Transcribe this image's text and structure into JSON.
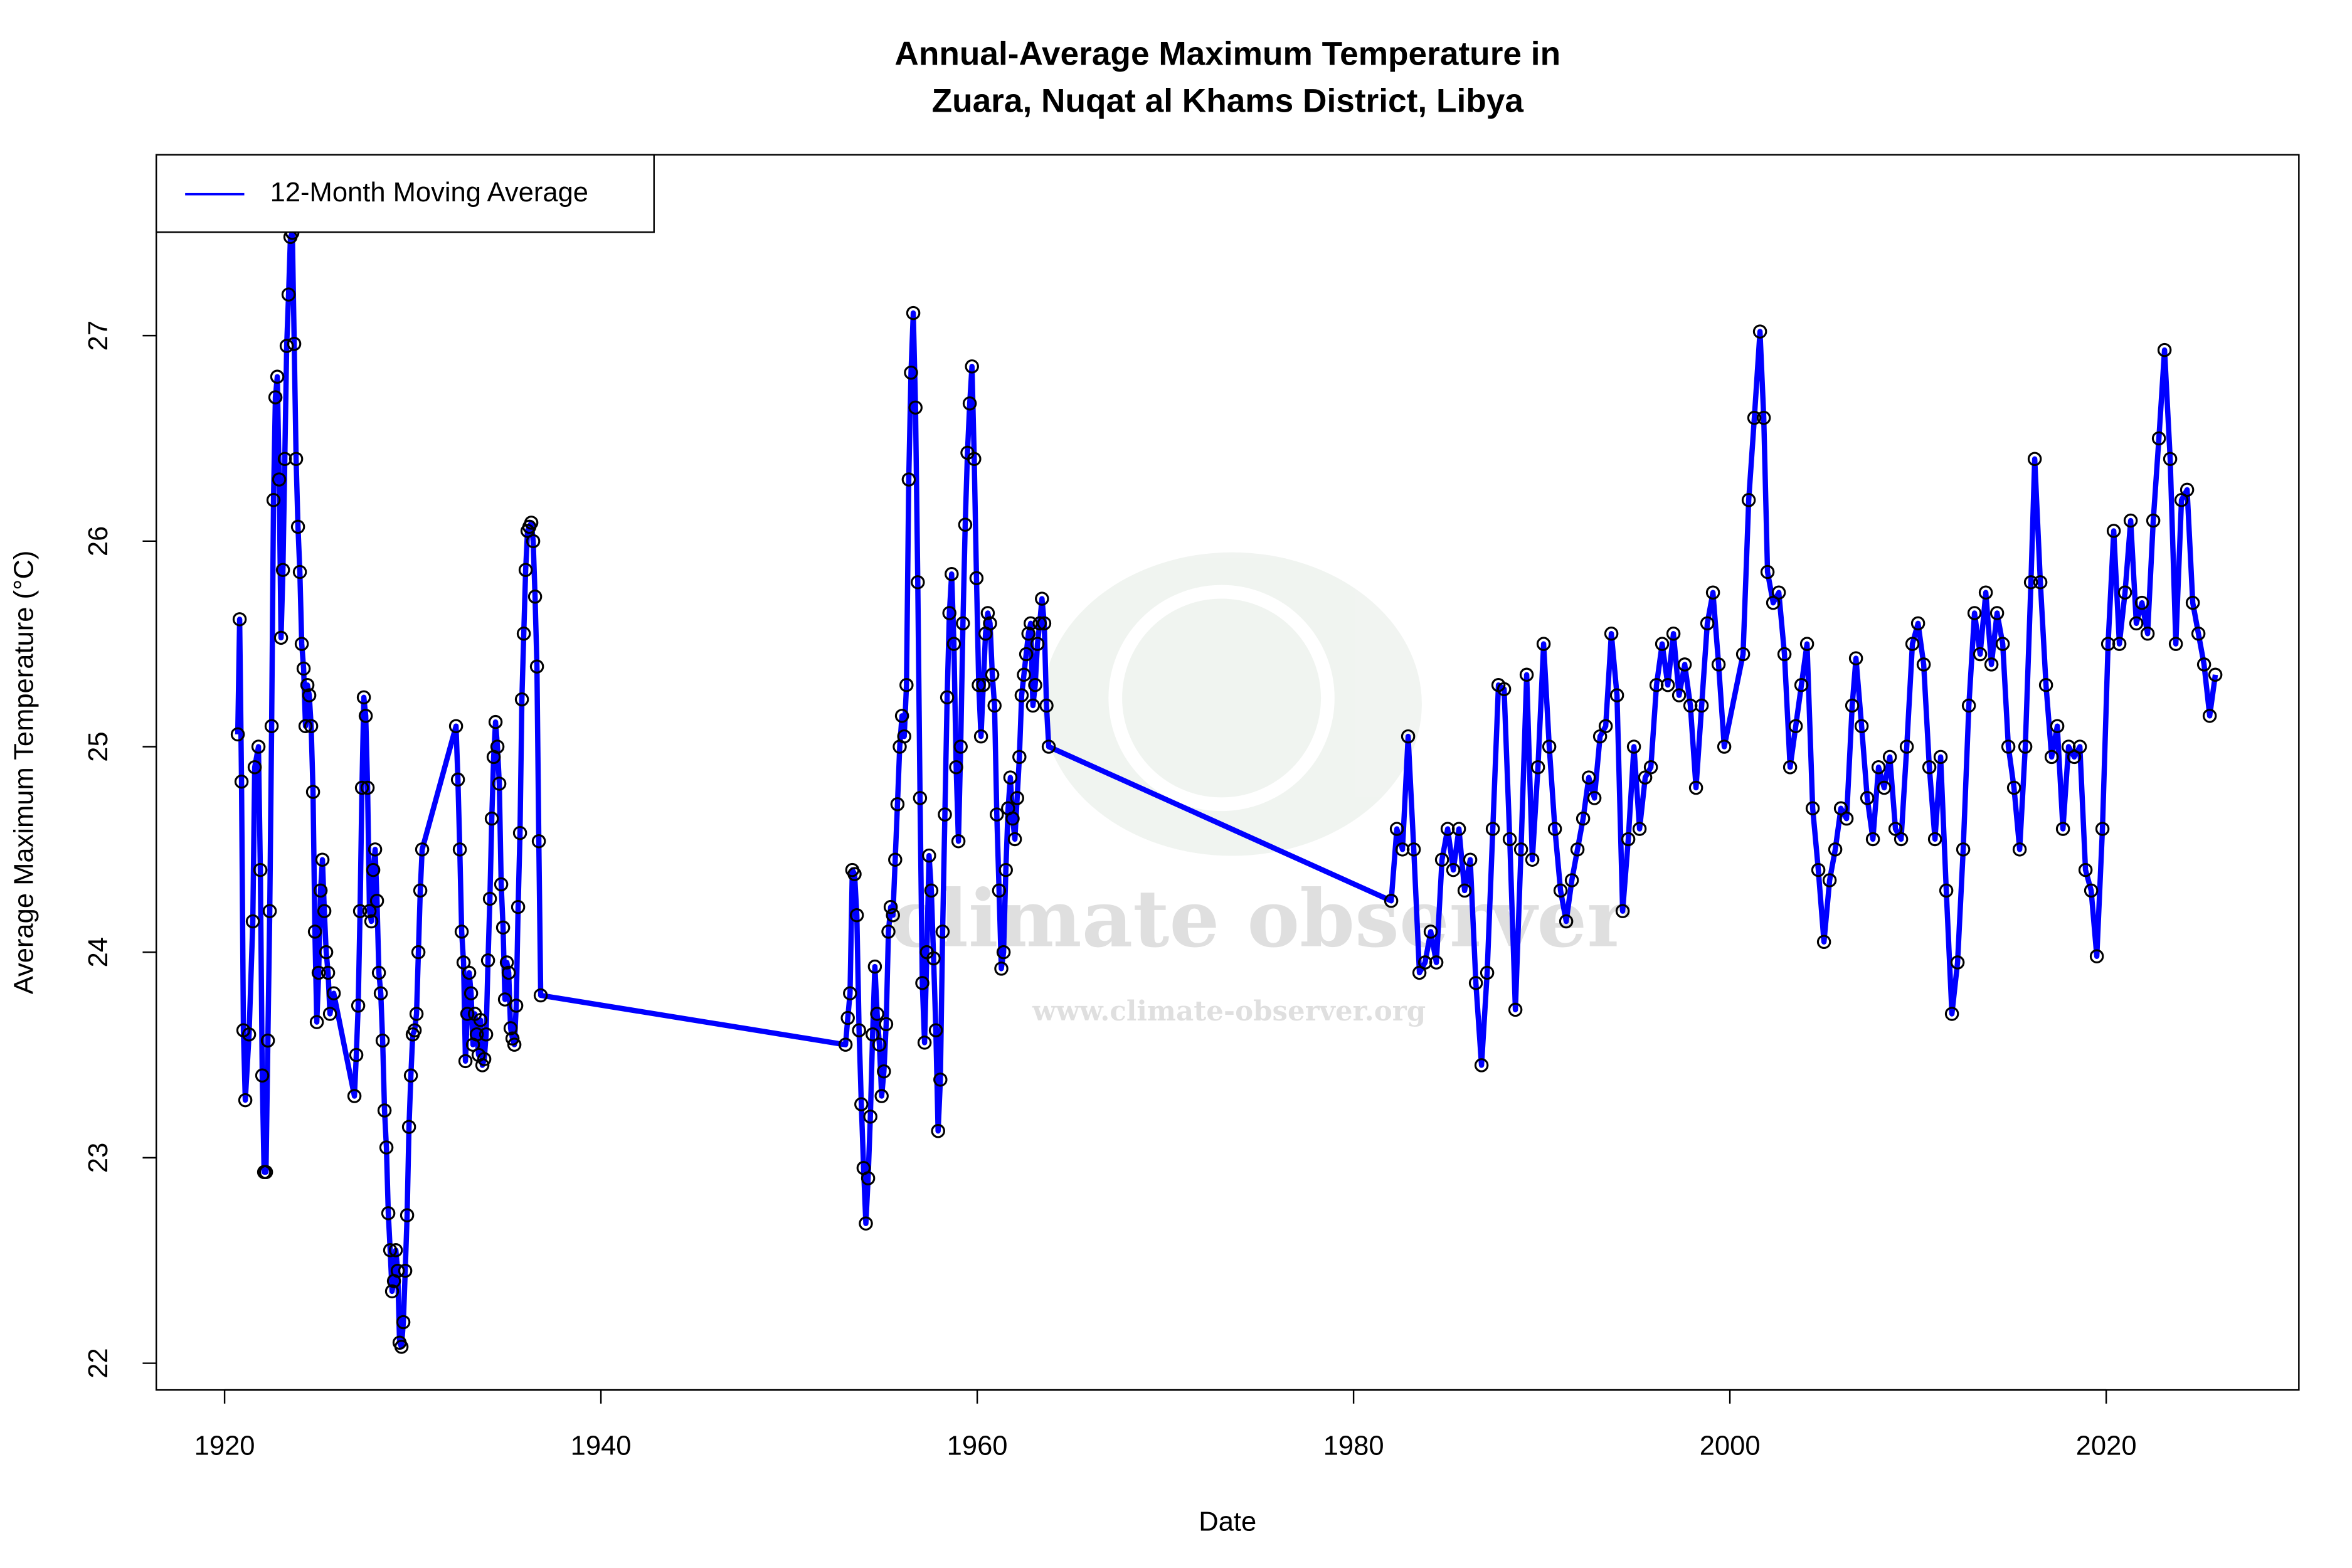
{
  "chart_data": {
    "type": "line",
    "title": [
      "Annual-Average Maximum Temperature in",
      "Zuara, Nuqat al Khams District, Libya"
    ],
    "xlabel": "Date",
    "ylabel": "Average Maximum Temperature (°C)",
    "watermark": [
      "climate observer",
      "www.climate-observer.org"
    ],
    "xlim": [
      1916.37,
      2030.24
    ],
    "ylim": [
      21.87,
      27.88
    ],
    "xticks": [
      1920,
      1940,
      1960,
      1980,
      2000,
      2020
    ],
    "yticks": [
      22,
      23,
      24,
      25,
      26,
      27
    ],
    "legend": "top-left",
    "points": true,
    "x": [
      1920.7,
      1920.8,
      1920.9,
      1921.0,
      1921.1,
      1921.3,
      1921.5,
      1921.6,
      1921.8,
      1921.9,
      1922.0,
      1922.1,
      1922.2,
      1922.3,
      1922.4,
      1922.5,
      1922.6,
      1922.7,
      1922.8,
      1922.9,
      1923.0,
      1923.1,
      1923.2,
      1923.3,
      1923.4,
      1923.5,
      1923.6,
      1923.7,
      1923.8,
      1923.9,
      1924.0,
      1924.1,
      1924.2,
      1924.3,
      1924.4,
      1924.5,
      1924.6,
      1924.7,
      1924.8,
      1924.9,
      1925.0,
      1925.1,
      1925.2,
      1925.3,
      1925.4,
      1925.5,
      1925.6,
      1925.8,
      1926.9,
      1927.0,
      1927.1,
      1927.2,
      1927.3,
      1927.4,
      1927.5,
      1927.6,
      1927.7,
      1927.8,
      1927.9,
      1928.0,
      1928.1,
      1928.2,
      1928.3,
      1928.4,
      1928.5,
      1928.6,
      1928.7,
      1928.8,
      1928.9,
      1929.0,
      1929.1,
      1929.2,
      1929.3,
      1929.4,
      1929.5,
      1929.6,
      1929.7,
      1929.8,
      1929.9,
      1930.0,
      1930.1,
      1930.2,
      1930.3,
      1930.4,
      1930.5,
      1932.3,
      1932.4,
      1932.5,
      1932.6,
      1932.7,
      1932.8,
      1932.9,
      1933.0,
      1933.1,
      1933.2,
      1933.3,
      1933.4,
      1933.5,
      1933.6,
      1933.7,
      1933.8,
      1933.9,
      1934.0,
      1934.1,
      1934.2,
      1934.3,
      1934.4,
      1934.5,
      1934.6,
      1934.7,
      1934.8,
      1934.9,
      1935.0,
      1935.1,
      1935.2,
      1935.3,
      1935.4,
      1935.5,
      1935.6,
      1935.7,
      1935.8,
      1935.9,
      1936.0,
      1936.1,
      1936.2,
      1936.3,
      1936.4,
      1936.5,
      1936.6,
      1936.7,
      1936.8,
      1953.0,
      1953.12,
      1953.24,
      1953.36,
      1953.48,
      1953.6,
      1953.72,
      1953.84,
      1953.96,
      1954.08,
      1954.2,
      1954.32,
      1954.44,
      1954.56,
      1954.68,
      1954.8,
      1954.92,
      1955.04,
      1955.16,
      1955.28,
      1955.4,
      1955.52,
      1955.64,
      1955.76,
      1955.88,
      1956.0,
      1956.12,
      1956.24,
      1956.36,
      1956.48,
      1956.6,
      1956.72,
      1956.84,
      1956.96,
      1957.08,
      1957.2,
      1957.32,
      1957.44,
      1957.56,
      1957.68,
      1957.8,
      1957.92,
      1958.04,
      1958.16,
      1958.28,
      1958.4,
      1958.52,
      1958.64,
      1958.76,
      1958.88,
      1959.0,
      1959.12,
      1959.24,
      1959.36,
      1959.48,
      1959.6,
      1959.72,
      1959.84,
      1959.96,
      1960.08,
      1960.2,
      1960.32,
      1960.44,
      1960.56,
      1960.68,
      1960.8,
      1960.92,
      1961.04,
      1961.16,
      1961.28,
      1961.4,
      1961.52,
      1961.64,
      1961.76,
      1961.88,
      1962.0,
      1962.12,
      1962.24,
      1962.36,
      1962.48,
      1962.6,
      1962.72,
      1962.84,
      1962.96,
      1963.08,
      1963.2,
      1963.32,
      1963.44,
      1963.56,
      1963.68,
      1963.8,
      1982.0,
      1982.3,
      1982.6,
      1982.9,
      1983.2,
      1983.5,
      1983.8,
      1984.1,
      1984.4,
      1984.7,
      1985.0,
      1985.3,
      1985.6,
      1985.9,
      1986.2,
      1986.5,
      1986.8,
      1987.1,
      1987.4,
      1987.7,
      1988.0,
      1988.3,
      1988.6,
      1988.9,
      1989.2,
      1989.5,
      1989.8,
      1990.1,
      1990.4,
      1990.7,
      1991.0,
      1991.3,
      1991.6,
      1991.9,
      1992.2,
      1992.5,
      1992.8,
      1993.1,
      1993.4,
      1993.7,
      1994.0,
      1994.3,
      1994.6,
      1994.9,
      1995.2,
      1995.5,
      1995.8,
      1996.1,
      1996.4,
      1996.7,
      1997.0,
      1997.3,
      1997.6,
      1997.9,
      1998.2,
      1998.5,
      1998.8,
      1999.1,
      1999.4,
      1999.7,
      2000.7,
      2001.0,
      2001.3,
      2001.6,
      2001.8,
      2002.0,
      2002.3,
      2002.6,
      2002.9,
      2003.2,
      2003.5,
      2003.8,
      2004.1,
      2004.4,
      2004.7,
      2005.0,
      2005.3,
      2005.6,
      2005.9,
      2006.2,
      2006.5,
      2006.7,
      2007.0,
      2007.3,
      2007.6,
      2007.9,
      2008.2,
      2008.5,
      2008.8,
      2009.1,
      2009.4,
      2009.7,
      2010.0,
      2010.3,
      2010.6,
      2010.9,
      2011.2,
      2011.5,
      2011.8,
      2012.1,
      2012.4,
      2012.7,
      2013.0,
      2013.3,
      2013.6,
      2013.9,
      2014.2,
      2014.5,
      2014.8,
      2015.1,
      2015.4,
      2015.7,
      2016.0,
      2016.2,
      2016.5,
      2016.8,
      2017.1,
      2017.4,
      2017.7,
      2018.0,
      2018.3,
      2018.6,
      2018.9,
      2019.2,
      2019.5,
      2019.8,
      2020.1,
      2020.4,
      2020.7,
      2021.0,
      2021.3,
      2021.6,
      2021.9,
      2022.2,
      2022.5,
      2022.8,
      2023.1,
      2023.4,
      2023.7,
      2024.0,
      2024.3,
      2024.6,
      2024.9,
      2025.2,
      2025.5,
      2025.8
    ],
    "series": [
      {
        "name": "12-Month Moving Average",
        "color": "#0000ff",
        "values": [
          25.06,
          25.62,
          24.83,
          23.62,
          23.28,
          23.6,
          24.15,
          24.9,
          25.0,
          24.4,
          23.4,
          22.93,
          22.93,
          23.57,
          24.2,
          25.1,
          26.2,
          26.7,
          26.8,
          26.3,
          25.53,
          25.86,
          26.4,
          26.95,
          27.2,
          27.48,
          27.5,
          26.96,
          26.4,
          26.07,
          25.85,
          25.5,
          25.38,
          25.1,
          25.3,
          25.25,
          25.1,
          24.78,
          24.1,
          23.66,
          23.9,
          24.3,
          24.45,
          24.2,
          24.0,
          23.9,
          23.7,
          23.8,
          23.3,
          23.5,
          23.74,
          24.2,
          24.8,
          25.24,
          25.15,
          24.8,
          24.2,
          24.15,
          24.4,
          24.5,
          24.25,
          23.9,
          23.8,
          23.57,
          23.23,
          23.05,
          22.73,
          22.55,
          22.35,
          22.4,
          22.55,
          22.45,
          22.1,
          22.08,
          22.2,
          22.45,
          22.72,
          23.15,
          23.4,
          23.6,
          23.62,
          23.7,
          24.0,
          24.3,
          24.5,
          25.1,
          24.84,
          24.5,
          24.1,
          23.95,
          23.47,
          23.7,
          23.9,
          23.8,
          23.55,
          23.7,
          23.6,
          23.5,
          23.67,
          23.45,
          23.48,
          23.6,
          23.96,
          24.26,
          24.65,
          24.95,
          25.12,
          25.0,
          24.82,
          24.33,
          24.12,
          23.77,
          23.95,
          23.9,
          23.63,
          23.58,
          23.55,
          23.74,
          24.22,
          24.58,
          25.23,
          25.55,
          25.86,
          26.05,
          26.07,
          26.09,
          26.0,
          25.73,
          25.39,
          24.54,
          23.79,
          23.55,
          23.68,
          23.8,
          24.4,
          24.38,
          24.18,
          23.62,
          23.26,
          22.95,
          22.68,
          22.9,
          23.2,
          23.6,
          23.93,
          23.7,
          23.55,
          23.3,
          23.42,
          23.65,
          24.1,
          24.22,
          24.18,
          24.45,
          24.72,
          25.0,
          25.15,
          25.05,
          25.3,
          26.3,
          26.82,
          27.11,
          26.65,
          25.8,
          24.75,
          23.85,
          23.56,
          24.0,
          24.47,
          24.3,
          23.97,
          23.62,
          23.13,
          23.38,
          24.1,
          24.67,
          25.24,
          25.65,
          25.84,
          25.5,
          24.9,
          24.54,
          25.0,
          25.6,
          26.08,
          26.43,
          26.67,
          26.85,
          26.4,
          25.82,
          25.3,
          25.05,
          25.3,
          25.55,
          25.65,
          25.6,
          25.35,
          25.2,
          24.67,
          24.3,
          23.92,
          24.0,
          24.4,
          24.7,
          24.85,
          24.65,
          24.55,
          24.75,
          24.95,
          25.25,
          25.35,
          25.45,
          25.55,
          25.6,
          25.2,
          25.3,
          25.5,
          25.6,
          25.72,
          25.6,
          25.2,
          25.0,
          24.25,
          24.6,
          24.5,
          25.05,
          24.5,
          23.9,
          23.95,
          24.1,
          23.95,
          24.45,
          24.6,
          24.4,
          24.6,
          24.3,
          24.45,
          23.85,
          23.45,
          23.9,
          24.6,
          25.3,
          25.28,
          24.55,
          23.72,
          24.5,
          25.35,
          24.45,
          24.9,
          25.5,
          25.0,
          24.6,
          24.3,
          24.15,
          24.35,
          24.5,
          24.65,
          24.85,
          24.75,
          25.05,
          25.1,
          25.55,
          25.25,
          24.2,
          24.55,
          25.0,
          24.6,
          24.85,
          24.9,
          25.3,
          25.5,
          25.3,
          25.55,
          25.25,
          25.4,
          25.2,
          24.8,
          25.2,
          25.6,
          25.75,
          25.4,
          25.0,
          25.45,
          26.2,
          26.6,
          27.02,
          26.6,
          25.85,
          25.7,
          25.75,
          25.45,
          24.9,
          25.1,
          25.3,
          25.5,
          24.7,
          24.4,
          24.05,
          24.35,
          24.5,
          24.7,
          24.65,
          25.2,
          25.43,
          25.1,
          24.75,
          24.55,
          24.9,
          24.8,
          24.95,
          24.6,
          24.55,
          25.0,
          25.5,
          25.6,
          25.4,
          24.9,
          24.55,
          24.95,
          24.3,
          23.7,
          23.95,
          24.5,
          25.2,
          25.65,
          25.45,
          25.75,
          25.4,
          25.65,
          25.5,
          25.0,
          24.8,
          24.5,
          25.0,
          25.8,
          26.4,
          25.8,
          25.3,
          24.95,
          25.1,
          24.6,
          25.0,
          24.95,
          25.0,
          24.4,
          24.3,
          23.98,
          24.6,
          25.5,
          26.05,
          25.5,
          25.75,
          26.1,
          25.6,
          25.7,
          25.55,
          26.1,
          26.5,
          26.93,
          26.4,
          25.5,
          26.2,
          26.25,
          25.7,
          25.55,
          25.4,
          25.15,
          25.35
        ]
      }
    ]
  }
}
